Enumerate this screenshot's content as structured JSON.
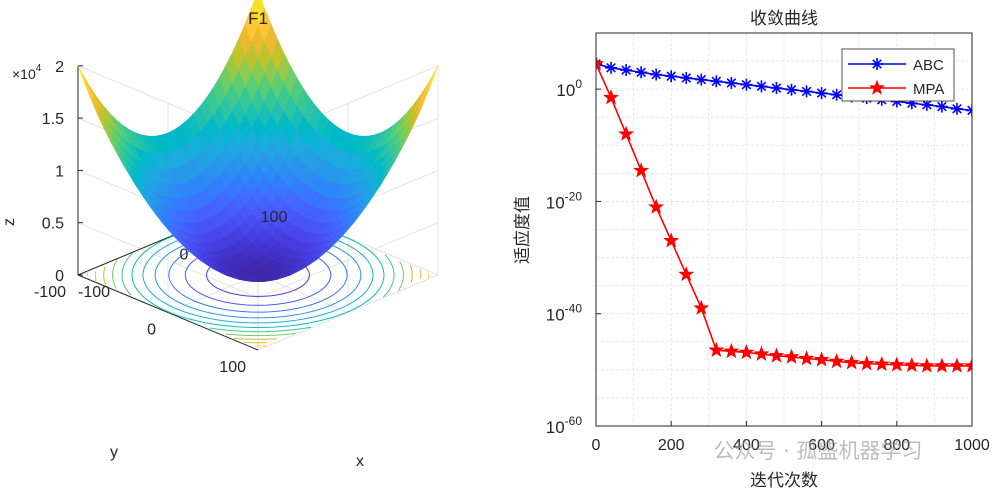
{
  "chart_data": [
    {
      "type": "surface3d",
      "title": "F1",
      "xlabel": "x",
      "ylabel": "y",
      "zlabel": "z",
      "x_ticks": [
        "-100",
        "0",
        "100"
      ],
      "y_ticks": [
        "-100",
        "0",
        "100"
      ],
      "z_ticks": [
        "0",
        "0.5",
        "1",
        "1.5",
        "2"
      ],
      "z_multiplier_base": "×10",
      "z_multiplier_exp": "4",
      "xlim": [
        -100,
        100
      ],
      "ylim": [
        -100,
        100
      ],
      "zlim": [
        0,
        20000
      ],
      "function": "z = x^2 + y^2",
      "colormap": "parula",
      "contour_levels": 12
    },
    {
      "type": "line",
      "title": "收敛曲线",
      "xlabel": "迭代次数",
      "ylabel": "适应度值",
      "yscale": "log",
      "xlim": [
        0,
        1000
      ],
      "ylim_exp": [
        -60,
        10
      ],
      "x_ticks": [
        "0",
        "200",
        "400",
        "600",
        "800",
        "1000"
      ],
      "y_tick_base": "10",
      "y_tick_exps": [
        "0",
        "-20",
        "-40",
        "-60"
      ],
      "grid": true,
      "legend_position": "top-right",
      "series": [
        {
          "name": "ABC",
          "color": "#0000ff",
          "marker": "asterisk",
          "x": [
            0,
            40,
            80,
            120,
            160,
            200,
            240,
            280,
            320,
            360,
            400,
            440,
            480,
            520,
            560,
            600,
            640,
            680,
            720,
            760,
            800,
            840,
            880,
            920,
            960,
            1000
          ],
          "log10_y": [
            4.5,
            3.8,
            3.4,
            3.0,
            2.6,
            2.3,
            2.0,
            1.7,
            1.4,
            1.1,
            0.8,
            0.5,
            0.2,
            -0.1,
            -0.4,
            -0.7,
            -1.0,
            -1.3,
            -1.6,
            -1.9,
            -2.2,
            -2.5,
            -2.8,
            -3.1,
            -3.5,
            -3.8
          ]
        },
        {
          "name": "MPA",
          "color": "#ff0000",
          "marker": "pentagram",
          "x": [
            0,
            40,
            80,
            120,
            160,
            200,
            240,
            280,
            320,
            360,
            400,
            440,
            480,
            520,
            560,
            600,
            640,
            680,
            720,
            760,
            800,
            840,
            880,
            920,
            960,
            1000
          ],
          "log10_y": [
            4.5,
            -1.5,
            -8.0,
            -14.5,
            -21.0,
            -27.0,
            -33.0,
            -39.0,
            -46.5,
            -46.7,
            -46.9,
            -47.2,
            -47.5,
            -47.7,
            -48.0,
            -48.2,
            -48.5,
            -48.7,
            -48.9,
            -49.0,
            -49.1,
            -49.2,
            -49.3,
            -49.3,
            -49.3,
            -49.3
          ]
        }
      ]
    }
  ],
  "watermark": "公众号 · 孤盛机器学习"
}
